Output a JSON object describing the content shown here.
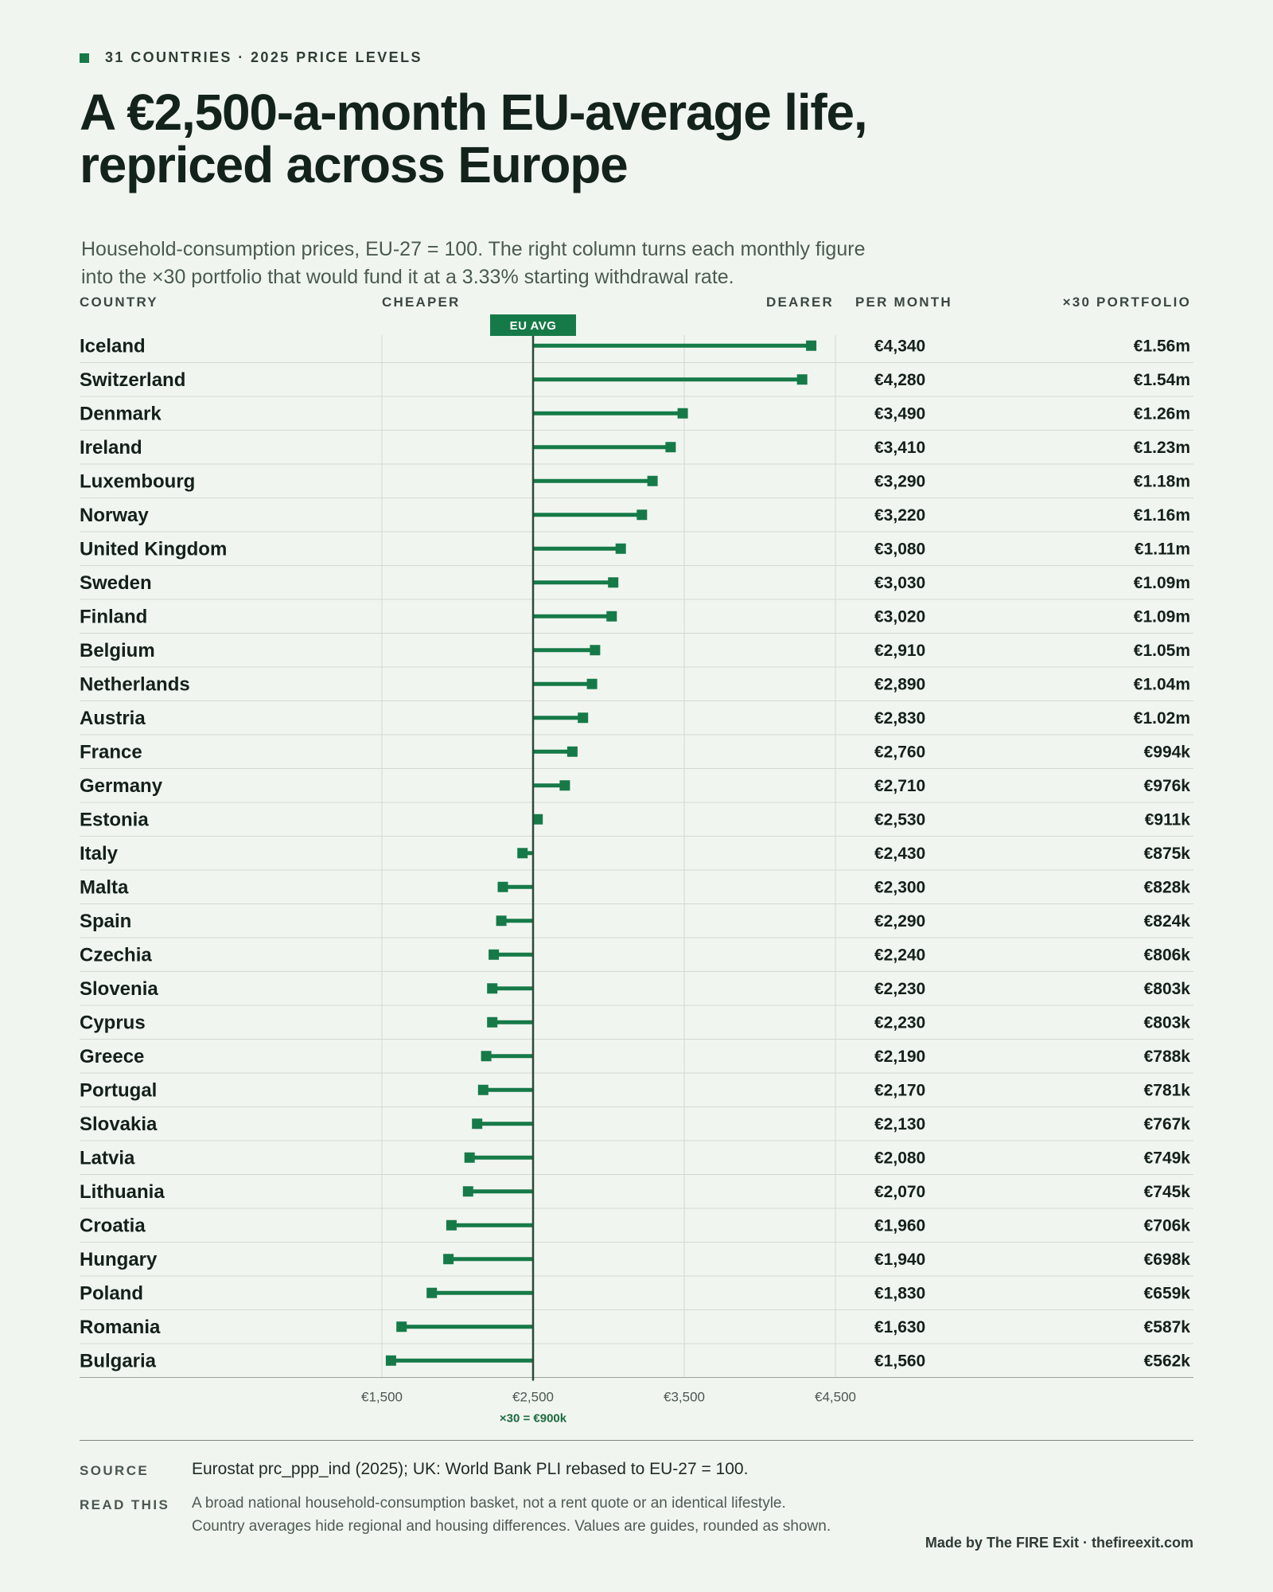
{
  "header": {
    "eyebrow": "31 COUNTRIES · 2025 PRICE LEVELS",
    "title_lines": [
      "A €2,500-a-month EU-average life,",
      "repriced across Europe"
    ],
    "subtitle_lines": [
      "Household-consumption prices, EU-27 = 100. The right column turns each monthly figure",
      "into the ×30 portfolio that would fund it at a 3.33% starting withdrawal rate."
    ]
  },
  "columns": {
    "country": "COUNTRY",
    "cheaper": "CHEAPER",
    "dearer": "DEARER",
    "per_month": "PER MONTH",
    "portfolio": "×30 PORTFOLIO"
  },
  "chart_data": {
    "type": "bar",
    "orientation": "horizontal-diverging",
    "baseline": 2500,
    "baseline_label": "EU AVG",
    "baseline_note": "×30 = €900k",
    "xlim": [
      1500,
      4500
    ],
    "xticks": [
      1500,
      2500,
      3500,
      4500
    ],
    "xtick_labels": [
      "€1,500",
      "€2,500",
      "€3,500",
      "€4,500"
    ],
    "grid": true,
    "accent_color": "#167a48",
    "rows": [
      {
        "country": "Iceland",
        "value": 4340,
        "label": "€4,340",
        "portfolio": "€1.56m"
      },
      {
        "country": "Switzerland",
        "value": 4280,
        "label": "€4,280",
        "portfolio": "€1.54m"
      },
      {
        "country": "Denmark",
        "value": 3490,
        "label": "€3,490",
        "portfolio": "€1.26m"
      },
      {
        "country": "Ireland",
        "value": 3410,
        "label": "€3,410",
        "portfolio": "€1.23m"
      },
      {
        "country": "Luxembourg",
        "value": 3290,
        "label": "€3,290",
        "portfolio": "€1.18m"
      },
      {
        "country": "Norway",
        "value": 3220,
        "label": "€3,220",
        "portfolio": "€1.16m"
      },
      {
        "country": "United Kingdom",
        "value": 3080,
        "label": "€3,080",
        "portfolio": "€1.11m"
      },
      {
        "country": "Sweden",
        "value": 3030,
        "label": "€3,030",
        "portfolio": "€1.09m"
      },
      {
        "country": "Finland",
        "value": 3020,
        "label": "€3,020",
        "portfolio": "€1.09m"
      },
      {
        "country": "Belgium",
        "value": 2910,
        "label": "€2,910",
        "portfolio": "€1.05m"
      },
      {
        "country": "Netherlands",
        "value": 2890,
        "label": "€2,890",
        "portfolio": "€1.04m"
      },
      {
        "country": "Austria",
        "value": 2830,
        "label": "€2,830",
        "portfolio": "€1.02m"
      },
      {
        "country": "France",
        "value": 2760,
        "label": "€2,760",
        "portfolio": "€994k"
      },
      {
        "country": "Germany",
        "value": 2710,
        "label": "€2,710",
        "portfolio": "€976k"
      },
      {
        "country": "Estonia",
        "value": 2530,
        "label": "€2,530",
        "portfolio": "€911k"
      },
      {
        "country": "Italy",
        "value": 2430,
        "label": "€2,430",
        "portfolio": "€875k"
      },
      {
        "country": "Malta",
        "value": 2300,
        "label": "€2,300",
        "portfolio": "€828k"
      },
      {
        "country": "Spain",
        "value": 2290,
        "label": "€2,290",
        "portfolio": "€824k"
      },
      {
        "country": "Czechia",
        "value": 2240,
        "label": "€2,240",
        "portfolio": "€806k"
      },
      {
        "country": "Slovenia",
        "value": 2230,
        "label": "€2,230",
        "portfolio": "€803k"
      },
      {
        "country": "Cyprus",
        "value": 2230,
        "label": "€2,230",
        "portfolio": "€803k"
      },
      {
        "country": "Greece",
        "value": 2190,
        "label": "€2,190",
        "portfolio": "€788k"
      },
      {
        "country": "Portugal",
        "value": 2170,
        "label": "€2,170",
        "portfolio": "€781k"
      },
      {
        "country": "Slovakia",
        "value": 2130,
        "label": "€2,130",
        "portfolio": "€767k"
      },
      {
        "country": "Latvia",
        "value": 2080,
        "label": "€2,080",
        "portfolio": "€749k"
      },
      {
        "country": "Lithuania",
        "value": 2070,
        "label": "€2,070",
        "portfolio": "€745k"
      },
      {
        "country": "Croatia",
        "value": 1960,
        "label": "€1,960",
        "portfolio": "€706k"
      },
      {
        "country": "Hungary",
        "value": 1940,
        "label": "€1,940",
        "portfolio": "€698k"
      },
      {
        "country": "Poland",
        "value": 1830,
        "label": "€1,830",
        "portfolio": "€659k"
      },
      {
        "country": "Romania",
        "value": 1630,
        "label": "€1,630",
        "portfolio": "€587k"
      },
      {
        "country": "Bulgaria",
        "value": 1560,
        "label": "€1,560",
        "portfolio": "€562k"
      }
    ]
  },
  "footer": {
    "source_label": "SOURCE",
    "source_text": "Eurostat prc_ppp_ind (2025); UK: World Bank PLI rebased to EU-27 = 100.",
    "read_label": "READ THIS",
    "read_lines": [
      "A broad national household-consumption basket, not a rent quote or an identical lifestyle.",
      "Country averages hide regional and housing differences. Values are guides, rounded as shown."
    ],
    "credit": "Made by The FIRE Exit · thefireexit.com"
  }
}
